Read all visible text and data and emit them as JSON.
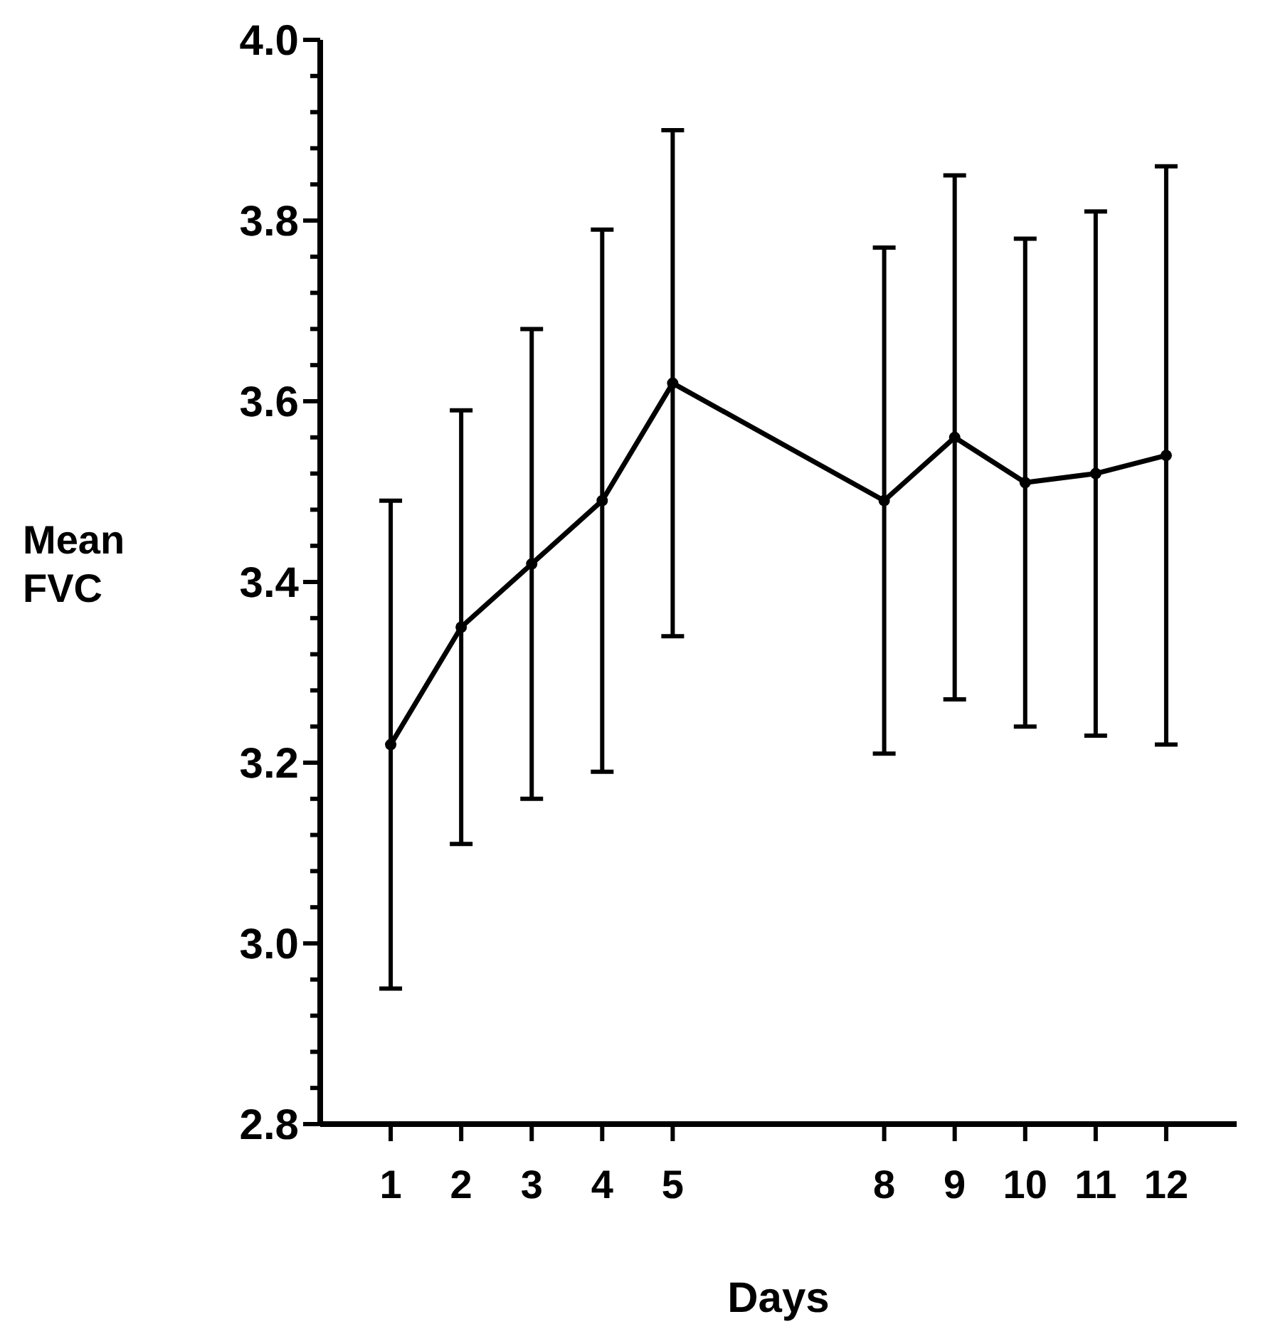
{
  "chart_data": {
    "type": "line",
    "xlabel": "Days",
    "ylabel": "Mean FVC",
    "x": [
      1,
      2,
      3,
      4,
      5,
      8,
      9,
      10,
      11,
      12
    ],
    "values": [
      3.22,
      3.35,
      3.42,
      3.49,
      3.62,
      3.49,
      3.56,
      3.51,
      3.52,
      3.54
    ],
    "errors": [
      0.27,
      0.24,
      0.26,
      0.3,
      0.28,
      0.28,
      0.29,
      0.27,
      0.29,
      0.32
    ],
    "color": "#000000",
    "marker": "circle",
    "line_style": "solid",
    "grid": false,
    "xlim": [
      0,
      13
    ],
    "xticks": [
      1,
      2,
      3,
      4,
      5,
      8,
      9,
      10,
      11,
      12
    ],
    "ylim": [
      2.8,
      4.0
    ],
    "yticks": [
      {
        "value": 2.8,
        "label": "2.8"
      },
      {
        "value": 2.84,
        "label": null
      },
      {
        "value": 2.88,
        "label": null
      },
      {
        "value": 2.92,
        "label": null
      },
      {
        "value": 2.96,
        "label": null
      },
      {
        "value": 3.0,
        "label": "3.0"
      },
      {
        "value": 3.04,
        "label": null
      },
      {
        "value": 3.08,
        "label": null
      },
      {
        "value": 3.12,
        "label": null
      },
      {
        "value": 3.16,
        "label": null
      },
      {
        "value": 3.2,
        "label": "3.2"
      },
      {
        "value": 3.24,
        "label": null
      },
      {
        "value": 3.28,
        "label": null
      },
      {
        "value": 3.32,
        "label": null
      },
      {
        "value": 3.36,
        "label": null
      },
      {
        "value": 3.4,
        "label": "3.4"
      },
      {
        "value": 3.44,
        "label": null
      },
      {
        "value": 3.48,
        "label": null
      },
      {
        "value": 3.52,
        "label": null
      },
      {
        "value": 3.56,
        "label": null
      },
      {
        "value": 3.6,
        "label": "3.6"
      },
      {
        "value": 3.64,
        "label": null
      },
      {
        "value": 3.68,
        "label": null
      },
      {
        "value": 3.72,
        "label": null
      },
      {
        "value": 3.76,
        "label": null
      },
      {
        "value": 3.8,
        "label": "3.8"
      },
      {
        "value": 3.84,
        "label": null
      },
      {
        "value": 3.88,
        "label": null
      },
      {
        "value": 3.92,
        "label": null
      },
      {
        "value": 3.96,
        "label": null
      },
      {
        "value": 4.0,
        "label": "4.0"
      }
    ]
  }
}
